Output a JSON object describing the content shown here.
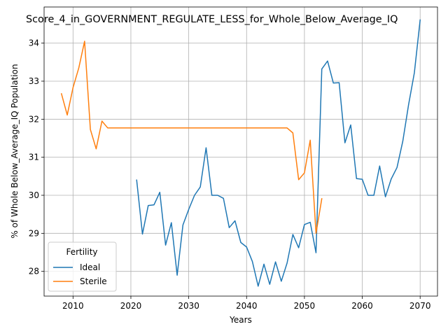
{
  "chart_data": {
    "type": "line",
    "title": "Score_4_in_GOVERNMENT_REGULATE_LESS_for_Whole_Below_Average_IQ",
    "xlabel": "Years",
    "ylabel": "% of Whole Below_Average_IQ Population",
    "xlim": [
      2005,
      2073
    ],
    "ylim": [
      27.35,
      34.95
    ],
    "xticks": [
      2010,
      2020,
      2030,
      2040,
      2050,
      2060,
      2070
    ],
    "yticks": [
      28,
      29,
      30,
      31,
      32,
      33,
      34
    ],
    "grid": true,
    "legend": {
      "title": "Fertility",
      "placement": "lower-left",
      "entries": [
        "Ideal",
        "Sterile"
      ]
    },
    "series": [
      {
        "name": "Ideal",
        "color": "#1f77b4",
        "x": [
          2021,
          2022,
          2023,
          2024,
          2025,
          2026,
          2027,
          2028,
          2029,
          2030,
          2031,
          2032,
          2033,
          2034,
          2035,
          2036,
          2037,
          2038,
          2039,
          2040,
          2041,
          2042,
          2043,
          2044,
          2045,
          2046,
          2047,
          2048,
          2049,
          2050,
          2051,
          2052,
          2053,
          2054,
          2055,
          2056,
          2057,
          2058,
          2059,
          2060,
          2061,
          2062,
          2063,
          2064,
          2065,
          2066,
          2067,
          2068,
          2069,
          2070
        ],
        "y": [
          30.4,
          28.98,
          29.73,
          29.75,
          30.08,
          28.69,
          29.28,
          27.9,
          29.22,
          29.63,
          30.0,
          30.22,
          31.25,
          30.0,
          30.0,
          29.92,
          29.15,
          29.33,
          28.76,
          28.64,
          28.26,
          27.61,
          28.19,
          27.66,
          28.25,
          27.74,
          28.22,
          28.97,
          28.62,
          29.23,
          29.29,
          28.49,
          33.32,
          33.53,
          32.95,
          32.96,
          31.38,
          31.85,
          30.44,
          30.42,
          30.0,
          30.0,
          30.77,
          29.96,
          30.43,
          30.73,
          31.42,
          32.38,
          33.22,
          34.61
        ]
      },
      {
        "name": "Sterile",
        "color": "#ff7f0e",
        "x": [
          2008,
          2009,
          2010,
          2011,
          2012,
          2013,
          2014,
          2015,
          2016,
          2017,
          2018,
          2019,
          2020,
          2021,
          2022,
          2023,
          2024,
          2025,
          2026,
          2027,
          2028,
          2029,
          2030,
          2031,
          2032,
          2033,
          2034,
          2035,
          2036,
          2037,
          2038,
          2039,
          2040,
          2041,
          2042,
          2043,
          2044,
          2045,
          2046,
          2047,
          2048,
          2049,
          2050,
          2051,
          2052,
          2053
        ],
        "y": [
          32.67,
          32.11,
          32.83,
          33.35,
          34.05,
          31.73,
          31.22,
          31.95,
          31.77,
          31.77,
          31.77,
          31.77,
          31.77,
          31.77,
          31.77,
          31.77,
          31.77,
          31.77,
          31.77,
          31.77,
          31.77,
          31.77,
          31.77,
          31.77,
          31.77,
          31.77,
          31.77,
          31.77,
          31.77,
          31.77,
          31.77,
          31.77,
          31.77,
          31.77,
          31.77,
          31.77,
          31.77,
          31.77,
          31.77,
          31.77,
          31.64,
          30.41,
          30.59,
          31.45,
          29.0,
          29.91
        ]
      }
    ]
  }
}
